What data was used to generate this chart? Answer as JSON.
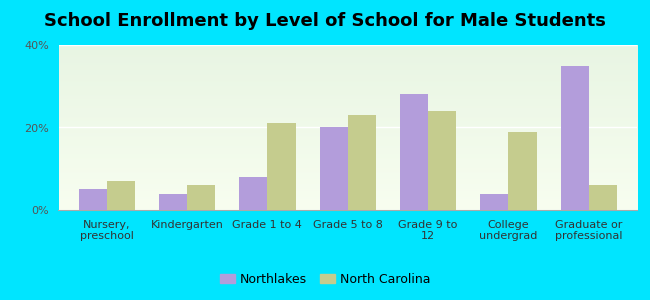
{
  "title": "School Enrollment by Level of School for Male Students",
  "categories": [
    "Nursery,\npreschool",
    "Kindergarten",
    "Grade 1 to 4",
    "Grade 5 to 8",
    "Grade 9 to\n12",
    "College\nundergrad",
    "Graduate or\nprofessional"
  ],
  "northlakes": [
    5,
    4,
    8,
    20,
    28,
    4,
    35
  ],
  "north_carolina": [
    7,
    6,
    21,
    23,
    24,
    19,
    6
  ],
  "northlakes_color": "#b39ddb",
  "nc_color": "#c5cc8e",
  "background_color": "#00e5ff",
  "ylim": [
    0,
    40
  ],
  "yticks": [
    0,
    20,
    40
  ],
  "ytick_labels": [
    "0%",
    "20%",
    "40%"
  ],
  "legend_labels": [
    "Northlakes",
    "North Carolina"
  ],
  "bar_width": 0.35,
  "title_fontsize": 13,
  "tick_fontsize": 8,
  "legend_fontsize": 9
}
